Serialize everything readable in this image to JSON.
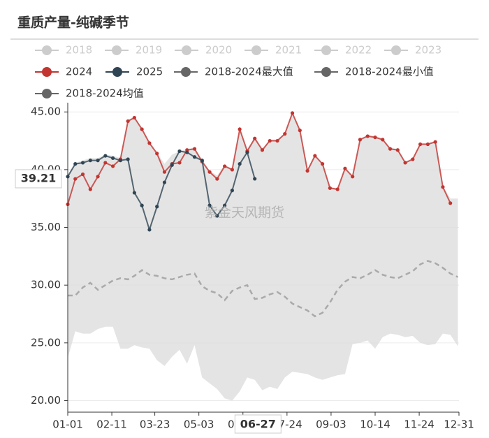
{
  "chart_data": {
    "type": "line",
    "title": "重质产量-纯碱季节",
    "watermark": "紫金天风期货",
    "legend": {
      "inactive": [
        "2018",
        "2019",
        "2020",
        "2021",
        "2022",
        "2023"
      ],
      "inactive_color": "#cccccc"
    },
    "x": [
      "01-01",
      "01-08",
      "01-15",
      "01-22",
      "01-29",
      "02-05",
      "02-12",
      "02-19",
      "02-26",
      "03-04",
      "03-11",
      "03-18",
      "03-25",
      "04-01",
      "04-08",
      "04-15",
      "04-22",
      "04-29",
      "05-06",
      "05-13",
      "05-20",
      "05-27",
      "06-03",
      "06-10",
      "06-17",
      "06-24",
      "07-01",
      "07-08",
      "07-15",
      "07-22",
      "07-29",
      "08-05",
      "08-12",
      "08-19",
      "08-26",
      "09-02",
      "09-09",
      "09-16",
      "09-23",
      "09-30",
      "10-07",
      "10-14",
      "10-21",
      "10-28",
      "11-04",
      "11-11",
      "11-18",
      "11-25",
      "12-02",
      "12-09",
      "12-16",
      "12-23",
      "12-30"
    ],
    "xlim": [
      "01-01",
      "12-31"
    ],
    "xticks": [
      "01-01",
      "02-11",
      "03-23",
      "05-03",
      "06-13",
      "07-24",
      "09-03",
      "10-14",
      "11-24",
      "12-31"
    ],
    "ylim": [
      19,
      45.8
    ],
    "yticks": [
      {
        "value": 20,
        "label": "20.00"
      },
      {
        "value": 25,
        "label": "25.00"
      },
      {
        "value": 30,
        "label": "30.00"
      },
      {
        "value": 35,
        "label": "35.00"
      },
      {
        "value": 40,
        "label": "40.00"
      },
      {
        "value": 45,
        "label": "45.00"
      }
    ],
    "grid": true,
    "axis_pointer": {
      "x": "06-27",
      "y": 39.21
    },
    "series": [
      {
        "name": "2018-2024最大值",
        "color": "#666666",
        "fill": "#e4e4e4",
        "role": "max",
        "values": [
          39.5,
          40.6,
          40.8,
          41.0,
          41.0,
          41.3,
          41.2,
          41.0,
          44.3,
          44.6,
          43.6,
          42.4,
          41.5,
          40.5,
          41.3,
          41.6,
          41.8,
          41.9,
          40.8,
          39.9,
          39.5,
          40.4,
          40.1,
          43.6,
          41.8,
          42.8,
          41.8,
          42.6,
          42.6,
          43.2,
          45.0,
          43.5,
          40.0,
          41.3,
          40.6,
          38.5,
          38.4,
          40.2,
          39.5,
          42.7,
          43.0,
          42.9,
          42.7,
          41.9,
          41.8,
          40.7,
          41.0,
          42.3,
          42.3,
          42.5,
          38.6,
          37.5,
          37.5
        ]
      },
      {
        "name": "2018-2024最小值",
        "color": "#666666",
        "fill": "#ffffff",
        "role": "min",
        "values": [
          23.7,
          26.0,
          25.8,
          25.8,
          26.2,
          26.4,
          26.4,
          24.5,
          24.5,
          24.8,
          24.6,
          24.5,
          23.5,
          23.0,
          23.8,
          24.4,
          23.2,
          24.8,
          22.0,
          21.5,
          21.0,
          20.2,
          20.0,
          20.8,
          22.0,
          21.8,
          20.9,
          21.2,
          21.0,
          22.0,
          22.5,
          22.4,
          22.3,
          22.0,
          21.8,
          22.0,
          22.2,
          22.3,
          24.9,
          25.0,
          25.2,
          24.5,
          25.5,
          25.8,
          25.7,
          25.5,
          25.6,
          25.0,
          24.8,
          24.9,
          25.8,
          25.7,
          24.7
        ]
      },
      {
        "name": "2018-2024均值",
        "color": "#666666",
        "line_color": "#aaaaaa",
        "dashed": true,
        "values": [
          29.1,
          29.1,
          29.8,
          30.2,
          29.6,
          30.0,
          30.4,
          30.6,
          30.5,
          30.8,
          31.3,
          30.9,
          30.8,
          30.6,
          30.5,
          30.7,
          30.9,
          31.0,
          29.9,
          29.5,
          29.3,
          28.7,
          29.5,
          29.8,
          30.0,
          28.8,
          28.9,
          29.2,
          29.4,
          29.0,
          28.4,
          28.1,
          27.8,
          27.3,
          27.6,
          28.5,
          29.6,
          30.3,
          30.7,
          30.6,
          30.9,
          31.3,
          30.9,
          30.7,
          30.6,
          30.9,
          31.2,
          31.8,
          32.1,
          31.9,
          31.5,
          31.0,
          30.7
        ]
      },
      {
        "name": "2024",
        "color": "#c23531",
        "dots": true,
        "values": [
          37.0,
          39.2,
          39.6,
          38.3,
          39.4,
          40.6,
          40.3,
          40.9,
          44.2,
          44.5,
          43.5,
          42.3,
          41.4,
          39.8,
          40.5,
          40.6,
          41.7,
          41.8,
          40.7,
          39.8,
          39.2,
          40.3,
          40.0,
          43.5,
          41.6,
          42.7,
          41.7,
          42.5,
          42.5,
          43.1,
          44.9,
          43.4,
          39.9,
          41.2,
          40.5,
          38.4,
          38.3,
          40.1,
          39.4,
          42.6,
          42.9,
          42.8,
          42.6,
          41.8,
          41.7,
          40.6,
          40.9,
          42.2,
          42.2,
          42.4,
          38.5,
          37.1,
          null
        ]
      },
      {
        "name": "2025",
        "color": "#2f4554",
        "dots": true,
        "values": [
          39.4,
          40.5,
          40.6,
          40.8,
          40.8,
          41.2,
          41.0,
          40.8,
          40.9,
          38.0,
          36.9,
          34.8,
          36.8,
          38.9,
          40.4,
          41.6,
          41.5,
          41.1,
          40.8,
          36.9,
          36.0,
          36.9,
          38.2,
          40.5,
          41.5,
          39.21,
          null,
          null,
          null,
          null,
          null,
          null,
          null,
          null,
          null,
          null,
          null,
          null,
          null,
          null,
          null,
          null,
          null,
          null,
          null,
          null,
          null,
          null,
          null,
          null,
          null,
          null,
          null
        ]
      }
    ]
  }
}
